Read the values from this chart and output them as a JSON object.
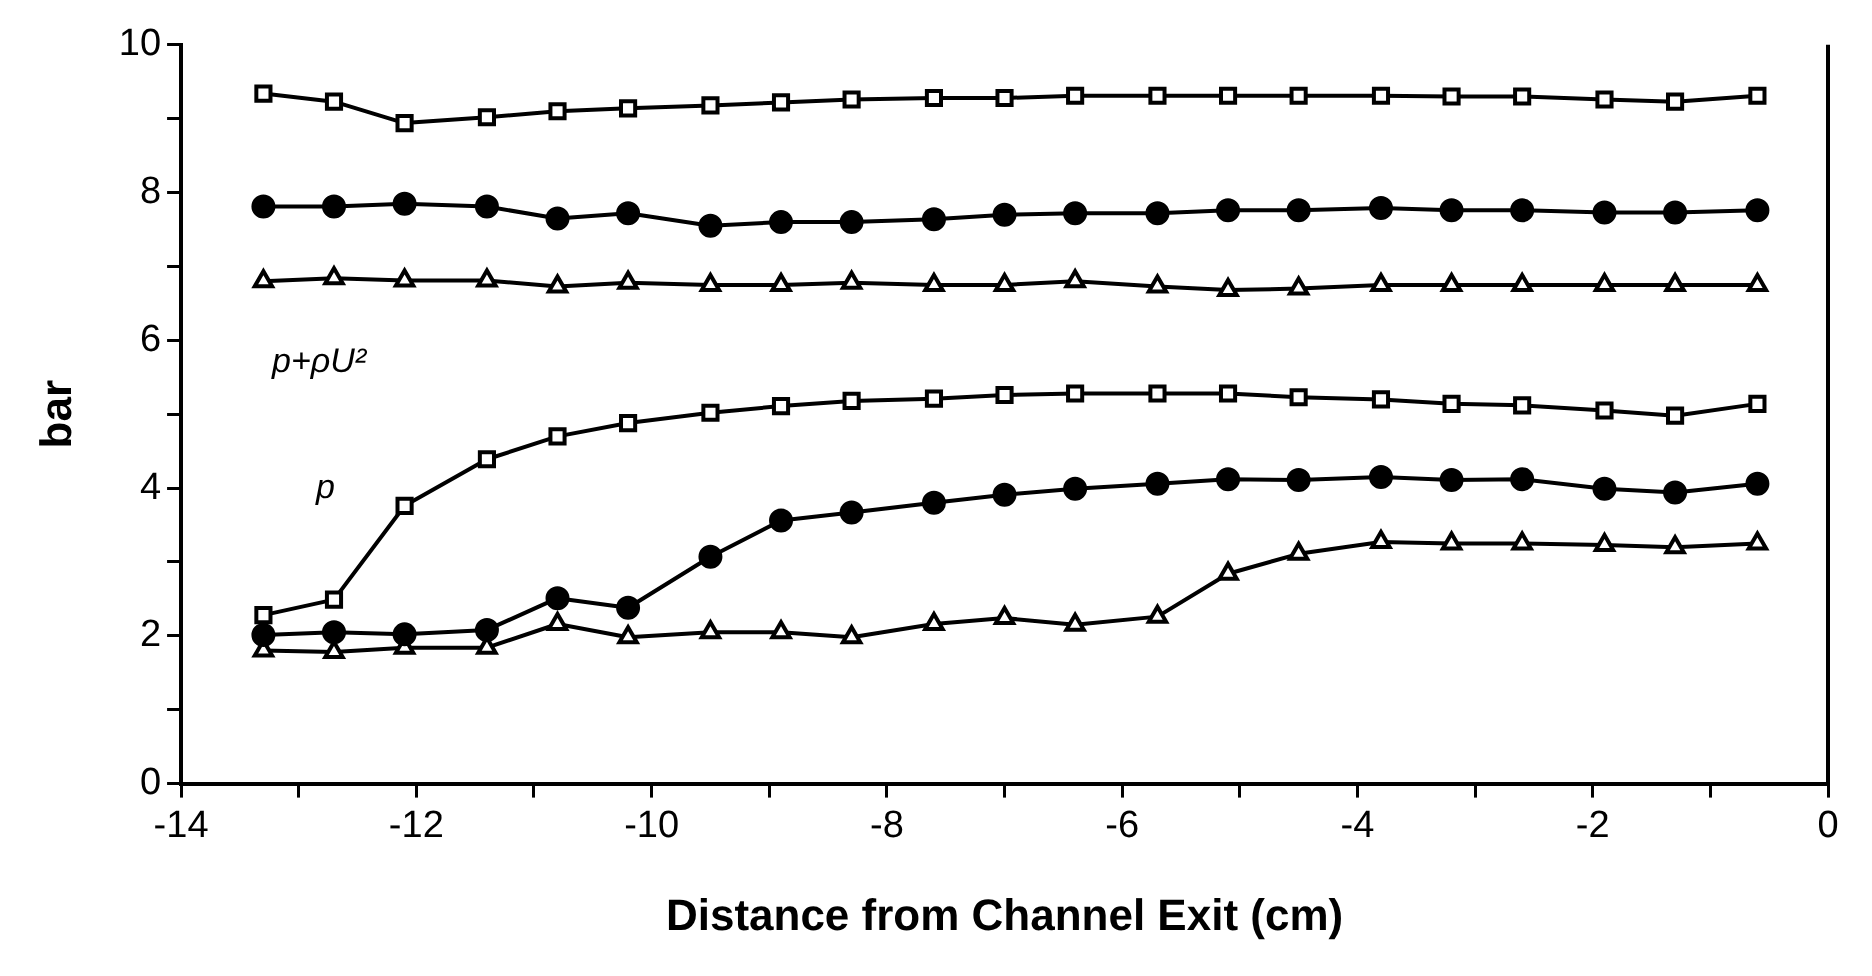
{
  "chart_data": {
    "type": "line",
    "xlabel": "Distance from Channel Exit (cm)",
    "ylabel": "bar",
    "x": [
      -13.3,
      -12.7,
      -12.1,
      -11.4,
      -10.8,
      -10.2,
      -9.5,
      -8.9,
      -8.3,
      -7.6,
      -7.0,
      -6.4,
      -5.7,
      -5.1,
      -4.5,
      -3.8,
      -3.2,
      -2.6,
      -1.9,
      -1.3,
      -0.6
    ],
    "series": [
      {
        "color": "#000000",
        "marker": "square",
        "values": [
          9.34,
          9.23,
          8.94,
          9.02,
          9.1,
          9.14,
          9.18,
          9.22,
          9.26,
          9.28,
          9.28,
          9.31,
          9.31,
          9.31,
          9.31,
          9.31,
          9.3,
          9.3,
          9.26,
          9.23,
          9.31
        ]
      },
      {
        "color": "#000000",
        "marker": "circle",
        "values": [
          7.81,
          7.81,
          7.85,
          7.81,
          7.65,
          7.72,
          7.55,
          7.6,
          7.6,
          7.64,
          7.7,
          7.72,
          7.72,
          7.76,
          7.76,
          7.79,
          7.76,
          7.76,
          7.73,
          7.73,
          7.76
        ]
      },
      {
        "color": "#000000",
        "marker": "triangle",
        "values": [
          6.8,
          6.84,
          6.81,
          6.81,
          6.73,
          6.78,
          6.75,
          6.75,
          6.78,
          6.75,
          6.75,
          6.8,
          6.73,
          6.68,
          6.7,
          6.75,
          6.75,
          6.75,
          6.75,
          6.75,
          6.75
        ]
      },
      {
        "color": "#000000",
        "marker": "square",
        "values": [
          2.28,
          2.49,
          3.76,
          4.39,
          4.7,
          4.88,
          5.02,
          5.11,
          5.18,
          5.21,
          5.26,
          5.28,
          5.28,
          5.28,
          5.23,
          5.2,
          5.14,
          5.12,
          5.05,
          4.98,
          5.14
        ]
      },
      {
        "color": "#000000",
        "marker": "circle",
        "values": [
          2.01,
          2.05,
          2.02,
          2.08,
          2.51,
          2.38,
          3.07,
          3.56,
          3.67,
          3.8,
          3.91,
          3.99,
          4.06,
          4.12,
          4.11,
          4.15,
          4.11,
          4.12,
          3.99,
          3.94,
          4.06
        ]
      },
      {
        "color": "#000000",
        "marker": "triangle",
        "values": [
          1.8,
          1.78,
          1.84,
          1.84,
          2.16,
          1.98,
          2.05,
          2.05,
          1.98,
          2.16,
          2.24,
          2.15,
          2.26,
          2.84,
          3.11,
          3.27,
          3.25,
          3.25,
          3.23,
          3.2,
          3.25
        ]
      }
    ],
    "annotations": [
      "p+ρU²",
      "p"
    ],
    "xlim": [
      -14,
      0
    ],
    "xticks": [
      -14,
      {
        "value": -13,
        "label": null
      },
      -12,
      {
        "value": -11,
        "label": null
      },
      -10,
      {
        "value": -9,
        "label": null
      },
      -8,
      {
        "value": -7,
        "label": null
      },
      -6,
      {
        "value": -5,
        "label": null
      },
      -4,
      {
        "value": -3,
        "label": null
      },
      -2,
      {
        "value": -1,
        "label": null
      },
      0
    ],
    "ylim": [
      0,
      10
    ],
    "yticks": [
      0,
      {
        "value": 1,
        "label": null
      },
      2,
      {
        "value": 3,
        "label": null
      },
      4,
      {
        "value": 5,
        "label": null
      },
      6,
      {
        "value": 7,
        "label": null
      },
      8,
      {
        "value": 9,
        "label": null
      },
      10
    ],
    "grid": false,
    "legend": false,
    "line_style": "solid"
  }
}
